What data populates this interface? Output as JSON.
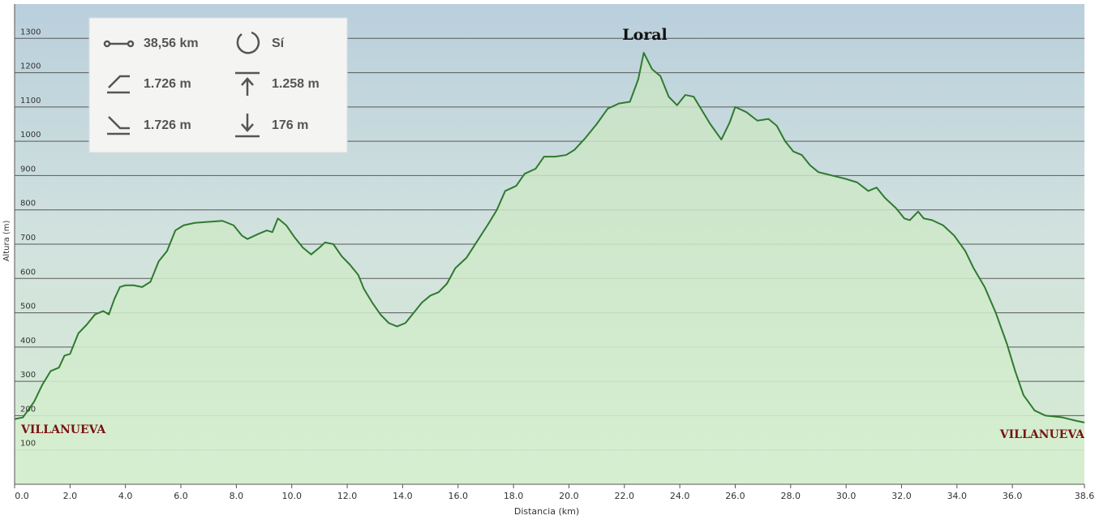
{
  "chart_data": {
    "type": "line",
    "x": [
      0,
      0.3,
      0.7,
      1.0,
      1.3,
      1.6,
      1.8,
      2.0,
      2.3,
      2.6,
      2.9,
      3.2,
      3.4,
      3.6,
      3.8,
      4.0,
      4.3,
      4.6,
      4.9,
      5.2,
      5.5,
      5.8,
      6.1,
      6.5,
      7.0,
      7.5,
      7.9,
      8.2,
      8.4,
      8.8,
      9.1,
      9.3,
      9.5,
      9.8,
      10.1,
      10.4,
      10.7,
      11.0,
      11.2,
      11.5,
      11.8,
      12.1,
      12.4,
      12.6,
      12.9,
      13.2,
      13.5,
      13.8,
      14.1,
      14.4,
      14.7,
      15.0,
      15.3,
      15.6,
      15.9,
      16.3,
      16.7,
      17.1,
      17.4,
      17.7,
      18.1,
      18.4,
      18.8,
      19.1,
      19.5,
      19.9,
      20.2,
      20.6,
      21.0,
      21.4,
      21.8,
      22.2,
      22.5,
      22.7,
      23.0,
      23.3,
      23.6,
      23.9,
      24.2,
      24.5,
      24.8,
      25.1,
      25.5,
      25.8,
      26.0,
      26.4,
      26.8,
      27.2,
      27.5,
      27.8,
      28.1,
      28.4,
      28.7,
      29.0,
      29.5,
      30.0,
      30.4,
      30.8,
      31.1,
      31.4,
      31.8,
      32.1,
      32.3,
      32.6,
      32.8,
      33.1,
      33.5,
      33.9,
      34.3,
      34.6,
      35.0,
      35.4,
      35.8,
      36.1,
      36.4,
      36.8,
      37.2,
      37.8,
      38.3,
      38.6
    ],
    "values": [
      190,
      195,
      240,
      290,
      330,
      340,
      375,
      380,
      440,
      465,
      495,
      505,
      495,
      540,
      575,
      580,
      580,
      575,
      590,
      650,
      680,
      740,
      755,
      762,
      765,
      768,
      755,
      725,
      715,
      730,
      740,
      735,
      775,
      755,
      720,
      690,
      670,
      690,
      705,
      700,
      665,
      640,
      610,
      570,
      530,
      495,
      470,
      460,
      470,
      500,
      530,
      550,
      560,
      585,
      630,
      660,
      710,
      760,
      800,
      855,
      870,
      905,
      920,
      955,
      955,
      960,
      975,
      1010,
      1050,
      1095,
      1110,
      1115,
      1180,
      1258,
      1210,
      1190,
      1130,
      1105,
      1135,
      1130,
      1090,
      1050,
      1005,
      1055,
      1100,
      1085,
      1060,
      1065,
      1045,
      1000,
      970,
      960,
      930,
      910,
      900,
      890,
      880,
      855,
      865,
      835,
      805,
      775,
      770,
      795,
      775,
      770,
      755,
      725,
      680,
      630,
      575,
      500,
      410,
      330,
      260,
      215,
      200,
      195,
      185,
      180
    ],
    "color": "#2f7a2f",
    "xlim": [
      0,
      38.6
    ],
    "ylim": [
      0,
      1400
    ],
    "xticks": [
      {
        "value": 0,
        "label": "0.0"
      },
      {
        "value": 2,
        "label": "2.0"
      },
      {
        "value": 4,
        "label": "4.0"
      },
      {
        "value": 6,
        "label": "6.0"
      },
      {
        "value": 8,
        "label": "8.0"
      },
      {
        "value": 10,
        "label": "10.0"
      },
      {
        "value": 12,
        "label": "12.0"
      },
      {
        "value": 14,
        "label": "14.0"
      },
      {
        "value": 16,
        "label": "16.0"
      },
      {
        "value": 18,
        "label": "18.0"
      },
      {
        "value": 20,
        "label": "20.0"
      },
      {
        "value": 22,
        "label": "22.0"
      },
      {
        "value": 24,
        "label": "24.0"
      },
      {
        "value": 26,
        "label": "26.0"
      },
      {
        "value": 28,
        "label": "28.0"
      },
      {
        "value": 30,
        "label": "30.0"
      },
      {
        "value": 32,
        "label": "32.0"
      },
      {
        "value": 34,
        "label": "34.0"
      },
      {
        "value": 36,
        "label": "36.0"
      },
      38.6
    ],
    "yticks": [
      100,
      200,
      300,
      400,
      500,
      600,
      700,
      800,
      900,
      1000,
      1100,
      1200,
      1300
    ],
    "grid": true,
    "xlabel": "Distancia (km)",
    "ylabel": "Altura (m)",
    "annotations": [
      "Loral",
      "VILLANUEVA",
      "VILLANUEVA"
    ],
    "stats": [
      "38,56 km",
      "Sí",
      "1.726 m",
      "1.258 m",
      "1.726 m",
      "176 m"
    ]
  }
}
